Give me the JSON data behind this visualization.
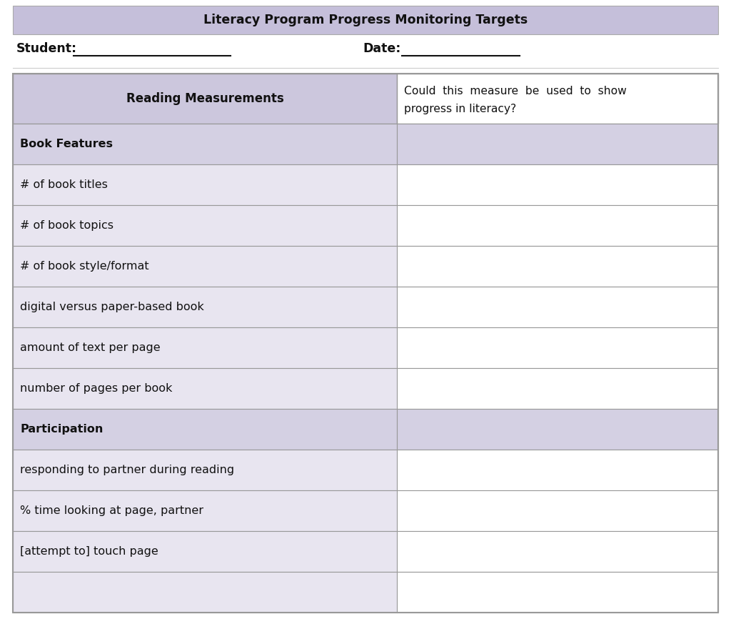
{
  "title": "Literacy Program Progress Monitoring Targets",
  "title_bg_color": "#c5bfda",
  "title_font_size": 12.5,
  "student_label": "Student:",
  "date_label": "Date:",
  "header_bg_color": "#ccc7dd",
  "section_bg_color": "#d4d0e3",
  "row_bg_white": "#ffffff",
  "row_bg_light": "#e8e5f0",
  "border_color": "#999999",
  "col1_header": "Reading Measurements",
  "col2_line1": "Could  this  measure  be  used  to  show",
  "col2_line2": "progress in literacy?",
  "rows": [
    {
      "label": "Book Features",
      "is_section": true
    },
    {
      "label": "# of book titles",
      "is_section": false
    },
    {
      "label": "# of book topics",
      "is_section": false
    },
    {
      "label": "# of book style/format",
      "is_section": false
    },
    {
      "label": "digital versus paper-based book",
      "is_section": false
    },
    {
      "label": "amount of text per page",
      "is_section": false
    },
    {
      "label": "number of pages per book",
      "is_section": false
    },
    {
      "label": "Participation",
      "is_section": true
    },
    {
      "label": "responding to partner during reading",
      "is_section": false
    },
    {
      "label": "% time looking at page, partner",
      "is_section": false
    },
    {
      "label": "[attempt to] touch page",
      "is_section": false
    },
    {
      "label": "",
      "is_section": false
    }
  ]
}
